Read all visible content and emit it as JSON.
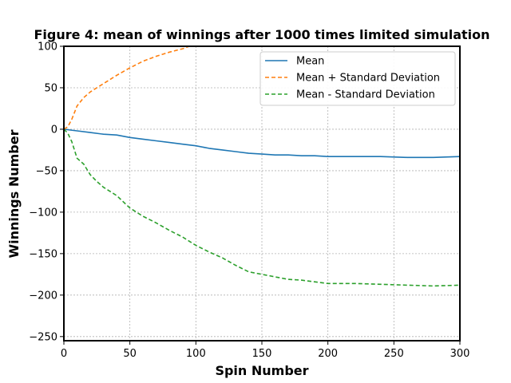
{
  "chart_data": {
    "type": "line",
    "title": "Figure 4: mean of winnings after 1000 times limited simulation",
    "xlabel": "Spin Number",
    "ylabel": "Winnings Number",
    "xlim": [
      0,
      300
    ],
    "ylim": [
      -255,
      100
    ],
    "xticks": [
      0,
      50,
      100,
      150,
      200,
      250,
      300
    ],
    "yticks": [
      100,
      50,
      0,
      -50,
      -100,
      -150,
      -200,
      -250
    ],
    "ytick_labels": [
      "100",
      "50",
      "0",
      "−50",
      "−100",
      "−150",
      "−200",
      "−250"
    ],
    "grid": true,
    "legend_position": "top-right",
    "series": [
      {
        "name": "Mean",
        "color": "#1f77b4",
        "style": "solid",
        "x": [
          0,
          5,
          10,
          20,
          30,
          40,
          50,
          60,
          70,
          80,
          90,
          100,
          110,
          120,
          130,
          140,
          150,
          160,
          170,
          180,
          190,
          200,
          220,
          240,
          260,
          280,
          300
        ],
        "y": [
          0,
          -1,
          -2,
          -4,
          -6,
          -7,
          -10,
          -12,
          -14,
          -16,
          -18,
          -20,
          -23,
          -25,
          -27,
          -29,
          -30,
          -31,
          -31,
          -32,
          -32,
          -33,
          -33,
          -33,
          -34,
          -34,
          -33
        ]
      },
      {
        "name": "Mean + Standard Deviation",
        "color": "#ff7f0e",
        "style": "dashed",
        "x": [
          0,
          3,
          6,
          10,
          15,
          20,
          25,
          30,
          40,
          50,
          60,
          70,
          80,
          90,
          95
        ],
        "y": [
          0,
          3,
          12,
          28,
          38,
          45,
          50,
          55,
          65,
          74,
          82,
          88,
          93,
          97,
          100
        ]
      },
      {
        "name": "Mean - Standard Deviation",
        "color": "#2ca02c",
        "style": "dashed",
        "x": [
          0,
          3,
          6,
          10,
          15,
          20,
          25,
          30,
          40,
          50,
          60,
          70,
          80,
          90,
          100,
          110,
          120,
          130,
          140,
          150,
          160,
          170,
          180,
          190,
          200,
          220,
          240,
          260,
          280,
          300
        ],
        "y": [
          0,
          -5,
          -15,
          -35,
          -42,
          -55,
          -63,
          -70,
          -80,
          -95,
          -105,
          -113,
          -122,
          -130,
          -140,
          -148,
          -155,
          -164,
          -172,
          -175,
          -178,
          -181,
          -182,
          -184,
          -186,
          -186,
          -187,
          -188,
          -189,
          -188
        ]
      }
    ]
  }
}
